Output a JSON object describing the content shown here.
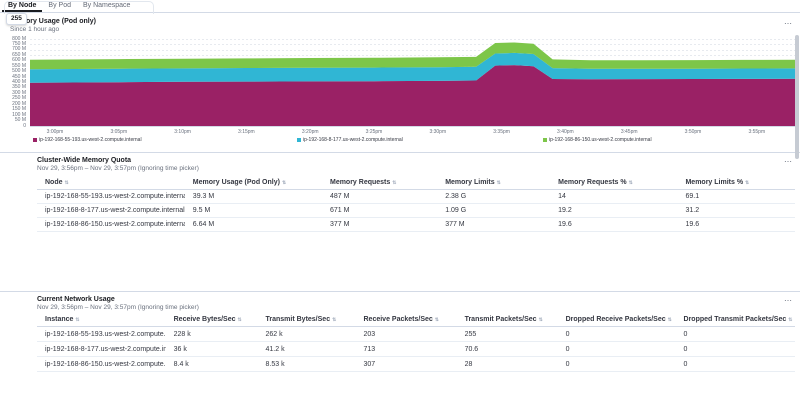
{
  "icons": {
    "ellipsis": "⋯",
    "sort": "⇅"
  },
  "badge": "255",
  "tabs": [
    {
      "label": "By Node",
      "active": true
    },
    {
      "label": "By Pod",
      "active": false
    },
    {
      "label": "By Namespace",
      "active": false
    }
  ],
  "memory_chart_panel": {
    "title": "Memory Usage (Pod only)",
    "subtitle": "Since 1 hour ago"
  },
  "chart_data": {
    "type": "area",
    "stacked": true,
    "title": "Memory Usage (Pod only)",
    "ylabel": "",
    "xlabel": "",
    "ylim_megabytes": [
      0,
      800
    ],
    "grid": true,
    "legend_position": "bottom",
    "y_ticks": [
      "800 M",
      "750 M",
      "700 M",
      "650 M",
      "600 M",
      "550 M",
      "500 M",
      "450 M",
      "400 M",
      "350 M",
      "300 M",
      "250 M",
      "200 M",
      "150 M",
      "100 M",
      "50 M",
      "0"
    ],
    "x_ticks": [
      "3:00pm",
      "3:05pm",
      "3:10pm",
      "3:15pm",
      "3:20pm",
      "3:25pm",
      "3:30pm",
      "3:35pm",
      "3:40pm",
      "3:45pm",
      "3:50pm",
      "3:55pm"
    ],
    "x_minutes": [
      -2,
      5,
      10,
      15,
      20,
      25,
      30,
      33,
      34.5,
      36,
      37.5,
      39,
      42,
      46,
      50,
      54,
      58
    ],
    "series": [
      {
        "name": "ip-192-168-55-193.us-west-2.compute.internal",
        "color": "#9a2165",
        "values_megabytes": [
          398,
          403,
          406,
          408,
          410,
          412,
          415,
          418,
          555,
          560,
          550,
          432,
          430,
          431,
          432,
          433,
          434
        ]
      },
      {
        "name": "ip-192-168-8-177.us-west-2.compute.internal",
        "color": "#30b6d4",
        "values_megabytes": [
          124,
          124,
          124,
          125,
          125,
          125,
          126,
          126,
          112,
          112,
          112,
          100,
          96,
          95,
          95,
          96,
          96
        ]
      },
      {
        "name": "ip-192-168-86-150.us-west-2.compute.internal",
        "color": "#7dc649",
        "values_megabytes": [
          88,
          88,
          89,
          89,
          90,
          90,
          91,
          91,
          96,
          96,
          94,
          80,
          78,
          78,
          79,
          79,
          80
        ]
      }
    ]
  },
  "memory_table_panel": {
    "title": "Cluster-Wide Memory Quota",
    "subtitle": "Nov 29, 3:56pm – Nov 29, 3:57pm (Ignoring time picker)",
    "columns": [
      "Node",
      "Memory Usage (Pod Only)",
      "Memory Requests",
      "Memory Limits",
      "Memory Requests %",
      "Memory Limits %"
    ],
    "rows": [
      [
        "ip-192-168-55-193.us-west-2.compute.internal",
        "39.3 M",
        "487 M",
        "2.38 G",
        "14",
        "69.1"
      ],
      [
        "ip-192-168-8-177.us-west-2.compute.internal",
        "9.5 M",
        "671 M",
        "1.09 G",
        "19.2",
        "31.2"
      ],
      [
        "ip-192-168-86-150.us-west-2.compute.internal",
        "6.64 M",
        "377 M",
        "377 M",
        "19.6",
        "19.6"
      ]
    ]
  },
  "network_table_panel": {
    "title": "Current Network Usage",
    "subtitle": "Nov 29, 3:56pm – Nov 29, 3:57pm (Ignoring time picker)",
    "columns": [
      "Instance",
      "Receive Bytes/Sec",
      "Transmit Bytes/Sec",
      "Receive Packets/Sec",
      "Transmit Packets/Sec",
      "Dropped Receive Packets/Sec",
      "Dropped Transmit Packets/Sec"
    ],
    "rows": [
      [
        "ip-192-168-55-193.us-west-2.compute.internal",
        "228 k",
        "262 k",
        "203",
        "255",
        "0",
        "0"
      ],
      [
        "ip-192-168-8-177.us-west-2.compute.internal",
        "36 k",
        "41.2 k",
        "713",
        "70.6",
        "0",
        "0"
      ],
      [
        "ip-192-168-86-150.us-west-2.compute.internal",
        "8.4 k",
        "8.53 k",
        "307",
        "28",
        "0",
        "0"
      ]
    ]
  }
}
